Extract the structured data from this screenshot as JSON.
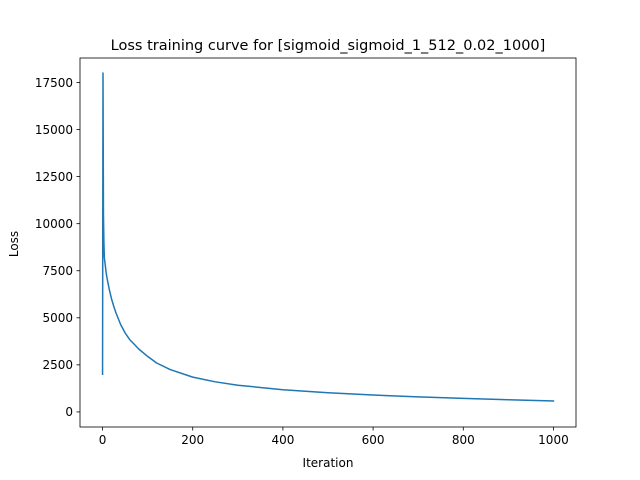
{
  "chart_data": {
    "type": "line",
    "title": "Loss training curve for [sigmoid_sigmoid_1_512_0.02_1000]",
    "xlabel": "Iteration",
    "ylabel": "Loss",
    "xlim": [
      -50,
      1050
    ],
    "ylim": [
      -800,
      18800
    ],
    "xticks": [
      0,
      200,
      400,
      600,
      800,
      1000
    ],
    "yticks": [
      0,
      2500,
      5000,
      7500,
      10000,
      12500,
      15000,
      17500
    ],
    "grid": false,
    "legend": "none",
    "line_color": "#1f77b4",
    "series": [
      {
        "x": [
          0,
          1,
          2,
          3,
          4,
          6,
          8,
          10,
          15,
          20,
          25,
          30,
          40,
          50,
          60,
          70,
          80,
          100,
          120,
          150,
          200,
          250,
          300,
          400,
          500,
          600,
          700,
          800,
          900,
          1000
        ],
        "y": [
          2000,
          18000,
          10500,
          9000,
          8200,
          7800,
          7400,
          7100,
          6500,
          6000,
          5600,
          5250,
          4650,
          4200,
          3850,
          3600,
          3350,
          2950,
          2600,
          2250,
          1850,
          1600,
          1420,
          1180,
          1020,
          900,
          800,
          720,
          650,
          580
        ]
      }
    ]
  }
}
